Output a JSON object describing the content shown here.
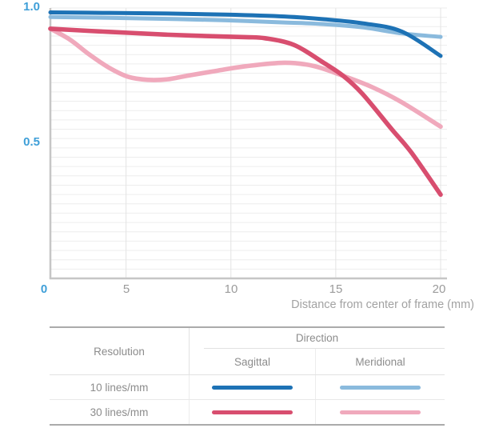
{
  "chart": {
    "x_axis_title": "Distance from center of frame (mm)",
    "y_tick_labels": [
      "1.0",
      "0.5"
    ],
    "origin_label": "0",
    "x_tick_labels": [
      "5",
      "10",
      "15",
      "20"
    ]
  },
  "chart_data": {
    "type": "line",
    "title": "",
    "xlabel": "Distance from center of frame (mm)",
    "ylabel": "",
    "xlim": [
      0,
      20
    ],
    "ylim": [
      0,
      1.0
    ],
    "x_ticks": [
      0,
      5,
      10,
      15,
      20
    ],
    "y_ticks": [
      0,
      0.5,
      1.0
    ],
    "grid": "on",
    "legend_position": "table-below",
    "series": [
      {
        "name": "10 lines/mm Sagittal",
        "color": "#1d72b5",
        "points": [
          [
            0,
            0.975
          ],
          [
            3,
            0.973
          ],
          [
            6,
            0.971
          ],
          [
            9,
            0.967
          ],
          [
            12,
            0.96
          ],
          [
            14,
            0.95
          ],
          [
            16,
            0.935
          ],
          [
            18,
            0.905
          ],
          [
            20,
            0.815
          ]
        ]
      },
      {
        "name": "10 lines/mm Meridional",
        "color": "#8abadd",
        "points": [
          [
            0,
            0.958
          ],
          [
            3,
            0.955
          ],
          [
            6,
            0.951
          ],
          [
            9,
            0.946
          ],
          [
            12,
            0.938
          ],
          [
            14,
            0.932
          ],
          [
            16,
            0.92
          ],
          [
            18,
            0.898
          ],
          [
            20,
            0.885
          ]
        ]
      },
      {
        "name": "30 lines/mm Sagittal",
        "color": "#d84e6f",
        "points": [
          [
            0,
            0.915
          ],
          [
            2,
            0.907
          ],
          [
            4,
            0.9
          ],
          [
            6,
            0.893
          ],
          [
            8,
            0.888
          ],
          [
            10,
            0.884
          ],
          [
            11,
            0.88
          ],
          [
            12.5,
            0.855
          ],
          [
            14,
            0.79
          ],
          [
            15,
            0.742
          ],
          [
            16,
            0.675
          ],
          [
            17.5,
            0.545
          ],
          [
            18.5,
            0.46
          ],
          [
            20,
            0.305
          ]
        ]
      },
      {
        "name": "30 lines/mm Meridional",
        "color": "#f0a9bc",
        "points": [
          [
            0,
            0.915
          ],
          [
            1,
            0.875
          ],
          [
            2,
            0.82
          ],
          [
            3,
            0.772
          ],
          [
            4,
            0.738
          ],
          [
            5,
            0.727
          ],
          [
            6,
            0.729
          ],
          [
            7,
            0.742
          ],
          [
            8.5,
            0.76
          ],
          [
            10,
            0.777
          ],
          [
            12,
            0.79
          ],
          [
            13.5,
            0.778
          ],
          [
            15,
            0.742
          ],
          [
            16.5,
            0.7
          ],
          [
            18,
            0.645
          ],
          [
            20,
            0.555
          ]
        ]
      }
    ]
  },
  "legend": {
    "header_resolution": "Resolution",
    "header_direction": "Direction",
    "header_sagittal": "Sagittal",
    "header_meridional": "Meridional",
    "rows": [
      {
        "resolution": "10 lines/mm",
        "sagittal_color": "#1d72b5",
        "meridional_color": "#8abadd"
      },
      {
        "resolution": "30 lines/mm",
        "sagittal_color": "#d84e6f",
        "meridional_color": "#f0a9bc"
      }
    ]
  }
}
